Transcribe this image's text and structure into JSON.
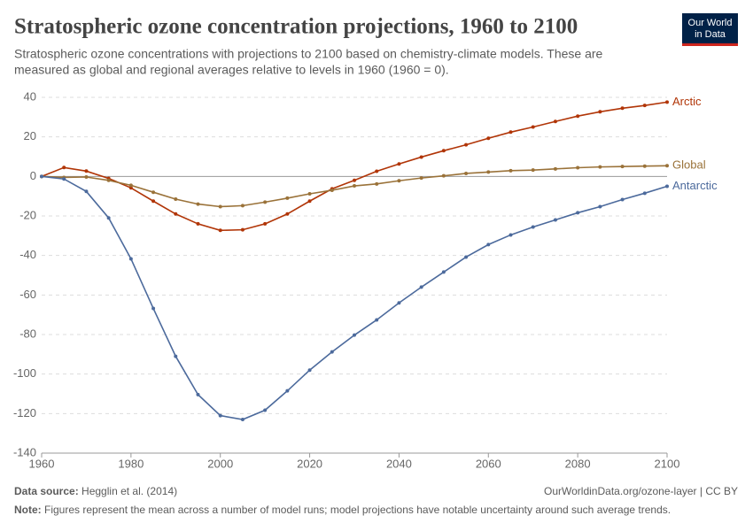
{
  "chart_data": {
    "type": "line",
    "title": "Stratospheric ozone concentration projections, 1960 to 2100",
    "subtitle": [
      "Stratospheric ozone concentrations with projections to 2100 based on chemistry-climate models. These are",
      "measured as global and regional averages relative to levels in 1960 (1960 = 0)."
    ],
    "x": [
      1960,
      1965,
      1970,
      1975,
      1980,
      1985,
      1990,
      1995,
      2000,
      2005,
      2010,
      2015,
      2020,
      2025,
      2030,
      2035,
      2040,
      2045,
      2050,
      2055,
      2060,
      2065,
      2070,
      2075,
      2080,
      2085,
      2090,
      2095,
      2100
    ],
    "series": [
      {
        "name": "Arctic",
        "color": "#b13507",
        "values": [
          0,
          4.5,
          2.7,
          -1,
          -5.8,
          -12.5,
          -19,
          -24,
          -27.3,
          -27,
          -24,
          -19,
          -12.5,
          -6.3,
          -2,
          2.6,
          6.3,
          9.8,
          13,
          16,
          19.3,
          22.4,
          25,
          27.8,
          30.5,
          32.7,
          34.5,
          35.9,
          37.6
        ]
      },
      {
        "name": "Global",
        "color": "#9a7239",
        "values": [
          0,
          -0.5,
          -0.3,
          -2,
          -4.5,
          -8,
          -11.5,
          -14,
          -15.3,
          -14.8,
          -13,
          -11,
          -8.8,
          -7,
          -4.8,
          -3.8,
          -2.2,
          -0.8,
          0.3,
          1.5,
          2.2,
          2.9,
          3.2,
          3.8,
          4.4,
          4.8,
          5,
          5.2,
          5.4
        ]
      },
      {
        "name": "Antarctic",
        "color": "#4c6a9c",
        "values": [
          0,
          -1.3,
          -7.6,
          -21,
          -41.7,
          -66.8,
          -91,
          -110.4,
          -121,
          -123,
          -118.3,
          -108.5,
          -98,
          -88.8,
          -80.3,
          -72.6,
          -64,
          -56,
          -48.4,
          -40.8,
          -34.5,
          -29.6,
          -25.6,
          -22,
          -18.4,
          -15.3,
          -11.7,
          -8.5,
          -5
        ]
      }
    ],
    "xlim": [
      1960,
      2100
    ],
    "xticks": [
      1960,
      1980,
      2000,
      2020,
      2040,
      2060,
      2080,
      2100
    ],
    "ylim": [
      -140,
      40
    ],
    "yticks": [
      -140,
      -120,
      -100,
      -80,
      -60,
      -40,
      -20,
      0,
      20,
      40
    ],
    "grid": true
  },
  "logo": [
    "Our World",
    "in Data"
  ],
  "footer": {
    "source_label": "Data source:",
    "source": "Hegglin et al. (2014)",
    "url": "OurWorldinData.org/ozone-layer | CC BY",
    "note_label": "Note:",
    "note": "Figures represent the mean across a number of model runs; model projections have notable uncertainty around such average trends."
  }
}
